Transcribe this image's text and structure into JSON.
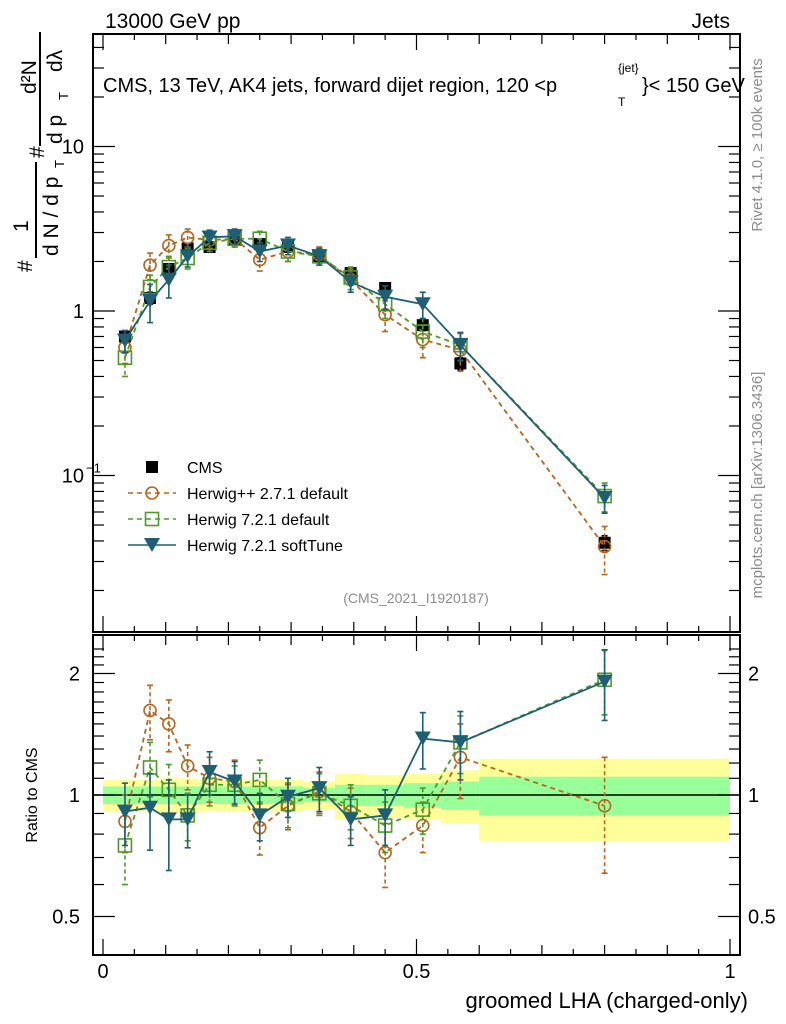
{
  "header": {
    "left_label": "13000 GeV pp",
    "right_label": "Jets"
  },
  "side_labels": {
    "rivet": "Rivet 4.1.0, ≥ 100k events",
    "mcplots": "mcplots.cern.ch [arXiv:1306.3436]"
  },
  "chart_data": [
    {
      "type": "line",
      "panel": "main",
      "title": "CMS, 13 TeV, AK4 jets, forward dijet region, 120 <p_T^{jet}< 150 GeV",
      "title_parts": {
        "prefix": "CMS, 13 TeV, AK4 jets, forward dijet region, 120 <p",
        "sub": "T",
        "sup": "{jet}",
        "suffix": "}< 150 GeV"
      },
      "ylabel": "1/dN/dpT # d²N/dpT dλ",
      "ylabel_parts": {
        "hash": "#",
        "one": "1",
        "denom1": "d N / d p",
        "sub_t": "T",
        "hash2": "#",
        "num2": "d²N",
        "denom2": "d p",
        "dlambda": "dλ"
      },
      "yscale": "log",
      "ylim": [
        0.012,
        40
      ],
      "xlim": [
        -0.015,
        1.015
      ],
      "yticks": [
        {
          "value": 0.1,
          "label": "10⁻¹"
        },
        {
          "value": 1,
          "label": "1"
        },
        {
          "value": 10,
          "label": "10"
        }
      ],
      "watermark": "(CMS_2021_I1920187)",
      "legend_position": "lower-left",
      "x": [
        0.035,
        0.075,
        0.105,
        0.135,
        0.17,
        0.21,
        0.25,
        0.295,
        0.345,
        0.395,
        0.45,
        0.51,
        0.57,
        0.8
      ],
      "series": [
        {
          "name": "CMS",
          "style": "data",
          "color": "#000000",
          "marker": "filled-square",
          "values": [
            0.7,
            1.2,
            1.8,
            2.4,
            2.45,
            2.7,
            2.55,
            2.45,
            2.15,
            1.7,
            1.38,
            0.82,
            0.48,
            0.039
          ],
          "err": [
            0.06,
            0.1,
            0.12,
            0.15,
            0.15,
            0.15,
            0.15,
            0.15,
            0.12,
            0.1,
            0.08,
            0.06,
            0.04,
            0.004
          ]
        },
        {
          "name": "Herwig++ 2.7.1 default",
          "style": "dashed",
          "color": "#b8641c",
          "marker": "open-circle",
          "values": [
            0.6,
            1.9,
            2.5,
            2.8,
            2.7,
            2.75,
            2.05,
            2.3,
            2.2,
            1.55,
            0.95,
            0.67,
            0.58,
            0.037
          ],
          "err": [
            0.12,
            0.35,
            0.4,
            0.35,
            0.3,
            0.3,
            0.3,
            0.3,
            0.25,
            0.25,
            0.2,
            0.15,
            0.15,
            0.012
          ]
        },
        {
          "name": "Herwig 7.2.1 default",
          "style": "dashed",
          "color": "#4e9a28",
          "marker": "open-square",
          "values": [
            0.52,
            1.4,
            1.85,
            2.1,
            2.6,
            2.75,
            2.75,
            2.3,
            2.15,
            1.6,
            1.1,
            0.75,
            0.62,
            0.075
          ],
          "err": [
            0.12,
            0.25,
            0.3,
            0.3,
            0.3,
            0.3,
            0.3,
            0.3,
            0.25,
            0.25,
            0.2,
            0.15,
            0.12,
            0.015
          ]
        },
        {
          "name": "Herwig 7.2.1 softTune",
          "style": "solid",
          "color": "#1f5f73",
          "marker": "filled-triangle-down",
          "values": [
            0.66,
            1.15,
            1.55,
            2.15,
            2.8,
            2.85,
            2.3,
            2.5,
            2.15,
            1.5,
            1.22,
            1.1,
            0.62,
            0.073
          ],
          "err": [
            0.1,
            0.3,
            0.35,
            0.3,
            0.3,
            0.3,
            0.3,
            0.3,
            0.25,
            0.2,
            0.2,
            0.2,
            0.12,
            0.014
          ]
        }
      ]
    },
    {
      "type": "line",
      "panel": "ratio",
      "ylabel": "Ratio to CMS",
      "xlabel": "groomed LHA (charged-only)",
      "yscale": "log",
      "ylim": [
        0.4,
        2.4
      ],
      "xlim": [
        -0.015,
        1.015
      ],
      "yticks": [
        {
          "value": 0.5,
          "label": "0.5"
        },
        {
          "value": 1,
          "label": "1"
        },
        {
          "value": 2,
          "label": "2"
        }
      ],
      "xticks": [
        {
          "value": 0,
          "label": "0"
        },
        {
          "value": 0.5,
          "label": "0.5"
        },
        {
          "value": 1,
          "label": "1"
        }
      ],
      "bands": {
        "edges": [
          0.0,
          0.055,
          0.09,
          0.12,
          0.15,
          0.19,
          0.23,
          0.27,
          0.32,
          0.37,
          0.42,
          0.48,
          0.54,
          0.6,
          1.0
        ],
        "inner": [
          0.05,
          0.05,
          0.05,
          0.05,
          0.05,
          0.05,
          0.05,
          0.05,
          0.04,
          0.06,
          0.06,
          0.07,
          0.08,
          0.11
        ],
        "outer": [
          0.09,
          0.09,
          0.1,
          0.1,
          0.09,
          0.09,
          0.09,
          0.09,
          0.08,
          0.13,
          0.12,
          0.13,
          0.15,
          0.23
        ],
        "inner_color": "#99ff99",
        "outer_color": "#ffff99"
      },
      "x": [
        0.035,
        0.075,
        0.105,
        0.135,
        0.17,
        0.21,
        0.25,
        0.295,
        0.345,
        0.395,
        0.45,
        0.51,
        0.57,
        0.8
      ],
      "series": [
        {
          "name": "Herwig++ 2.7.1 default",
          "style": "dashed",
          "color": "#b8641c",
          "marker": "open-circle",
          "values": [
            0.86,
            1.62,
            1.5,
            1.18,
            1.1,
            1.08,
            0.83,
            0.94,
            1.02,
            0.91,
            0.72,
            0.84,
            1.24,
            0.94
          ],
          "err": [
            0.14,
            0.25,
            0.22,
            0.15,
            0.14,
            0.14,
            0.12,
            0.12,
            0.12,
            0.13,
            0.13,
            0.12,
            0.26,
            0.3
          ]
        },
        {
          "name": "Herwig 7.2.1 default",
          "style": "dashed",
          "color": "#4e9a28",
          "marker": "open-square",
          "values": [
            0.75,
            1.17,
            1.03,
            0.89,
            1.06,
            1.06,
            1.09,
            0.95,
            1.01,
            0.94,
            0.84,
            0.92,
            1.35,
            1.93
          ],
          "err": [
            0.15,
            0.18,
            0.16,
            0.12,
            0.12,
            0.12,
            0.13,
            0.12,
            0.12,
            0.12,
            0.12,
            0.12,
            0.22,
            0.35
          ]
        },
        {
          "name": "Herwig 7.2.1 softTune",
          "style": "solid",
          "color": "#1f5f73",
          "marker": "filled-triangle-down",
          "values": [
            0.91,
            0.93,
            0.87,
            0.87,
            1.14,
            1.08,
            0.89,
            0.99,
            1.04,
            0.87,
            0.89,
            1.38,
            1.35,
            1.91
          ],
          "err": [
            0.16,
            0.2,
            0.22,
            0.13,
            0.14,
            0.13,
            0.12,
            0.11,
            0.13,
            0.12,
            0.14,
            0.22,
            0.26,
            0.38
          ]
        }
      ]
    }
  ]
}
